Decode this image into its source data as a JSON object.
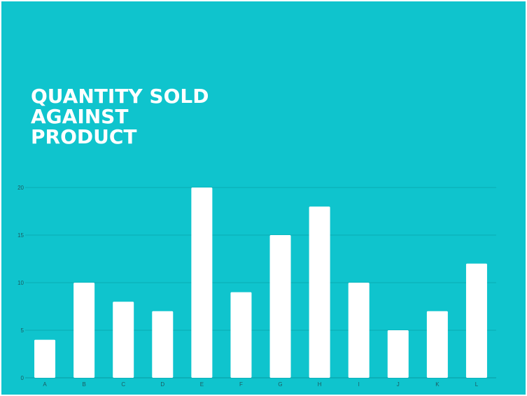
{
  "title_lines": [
    "QUANTITY SOLD",
    "AGAINST",
    "PRODUCT"
  ],
  "colors": {
    "background": "#0fc4cd",
    "bar": "#ffffff",
    "grid": "#0aa3ab",
    "title": "#ffffff"
  },
  "chart_data": {
    "type": "bar",
    "title": "QUANTITY SOLD AGAINST PRODUCT",
    "xlabel": "",
    "ylabel": "",
    "categories": [
      "A",
      "B",
      "C",
      "D",
      "E",
      "F",
      "G",
      "H",
      "I",
      "J",
      "K",
      "L"
    ],
    "values": [
      4,
      10,
      8,
      7,
      20,
      9,
      15,
      18,
      10,
      5,
      7,
      12
    ],
    "ylim": [
      0,
      20
    ],
    "yticks": [
      0,
      5,
      10,
      15,
      20
    ],
    "grid": true,
    "legend": "none"
  }
}
